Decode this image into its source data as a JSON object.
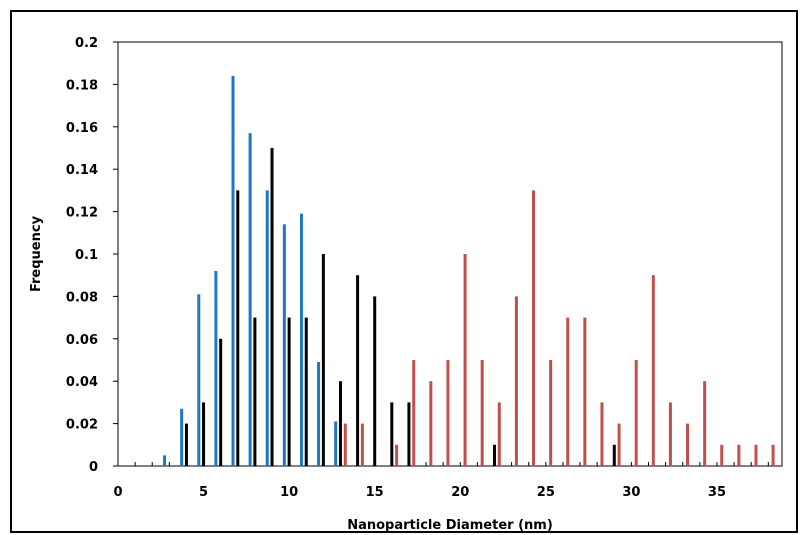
{
  "chart_data": {
    "type": "bar",
    "xlabel": "Nanoparticle Diameter (nm)",
    "ylabel": "Frequency",
    "xlim": [
      0,
      38.8
    ],
    "ylim": [
      0,
      0.2
    ],
    "xticks": [
      "0",
      "5",
      "10",
      "15",
      "20",
      "25",
      "30",
      "35"
    ],
    "yticks": [
      "0",
      "0.02",
      "0.04",
      "0.06",
      "0.08",
      "0.1",
      "0.12",
      "0.14",
      "0.16",
      "0.18",
      "0.2"
    ],
    "grid": false,
    "legend": "none",
    "series": [
      {
        "color": "#1f77c4",
        "points": [
          {
            "x": 3,
            "y": 0.005
          },
          {
            "x": 4,
            "y": 0.027
          },
          {
            "x": 5,
            "y": 0.081
          },
          {
            "x": 6,
            "y": 0.092
          },
          {
            "x": 7,
            "y": 0.184
          },
          {
            "x": 8,
            "y": 0.157
          },
          {
            "x": 9,
            "y": 0.13
          },
          {
            "x": 10,
            "y": 0.114
          },
          {
            "x": 11,
            "y": 0.119
          },
          {
            "x": 12,
            "y": 0.049
          },
          {
            "x": 13,
            "y": 0.021
          }
        ]
      },
      {
        "color": "#000000",
        "points": [
          {
            "x": 4,
            "y": 0.02
          },
          {
            "x": 5,
            "y": 0.03
          },
          {
            "x": 6,
            "y": 0.06
          },
          {
            "x": 7,
            "y": 0.13
          },
          {
            "x": 8,
            "y": 0.07
          },
          {
            "x": 9,
            "y": 0.15
          },
          {
            "x": 10,
            "y": 0.07
          },
          {
            "x": 11,
            "y": 0.07
          },
          {
            "x": 12,
            "y": 0.1
          },
          {
            "x": 13,
            "y": 0.04
          },
          {
            "x": 14,
            "y": 0.09
          },
          {
            "x": 15,
            "y": 0.08
          },
          {
            "x": 16,
            "y": 0.03
          },
          {
            "x": 17,
            "y": 0.03
          },
          {
            "x": 22,
            "y": 0.01
          },
          {
            "x": 29,
            "y": 0.01
          }
        ]
      },
      {
        "color": "#c0504d",
        "points": [
          {
            "x": 13,
            "y": 0.02
          },
          {
            "x": 14,
            "y": 0.02
          },
          {
            "x": 16,
            "y": 0.01
          },
          {
            "x": 17,
            "y": 0.05
          },
          {
            "x": 18,
            "y": 0.04
          },
          {
            "x": 19,
            "y": 0.05
          },
          {
            "x": 20,
            "y": 0.1
          },
          {
            "x": 21,
            "y": 0.05
          },
          {
            "x": 22,
            "y": 0.03
          },
          {
            "x": 23,
            "y": 0.08
          },
          {
            "x": 24,
            "y": 0.13
          },
          {
            "x": 25,
            "y": 0.05
          },
          {
            "x": 26,
            "y": 0.07
          },
          {
            "x": 27,
            "y": 0.07
          },
          {
            "x": 28,
            "y": 0.03
          },
          {
            "x": 29,
            "y": 0.02
          },
          {
            "x": 30,
            "y": 0.05
          },
          {
            "x": 31,
            "y": 0.09
          },
          {
            "x": 32,
            "y": 0.03
          },
          {
            "x": 33,
            "y": 0.02
          },
          {
            "x": 34,
            "y": 0.04
          },
          {
            "x": 35,
            "y": 0.01
          },
          {
            "x": 36,
            "y": 0.01
          },
          {
            "x": 37,
            "y": 0.01
          },
          {
            "x": 38,
            "y": 0.01
          }
        ]
      }
    ]
  }
}
